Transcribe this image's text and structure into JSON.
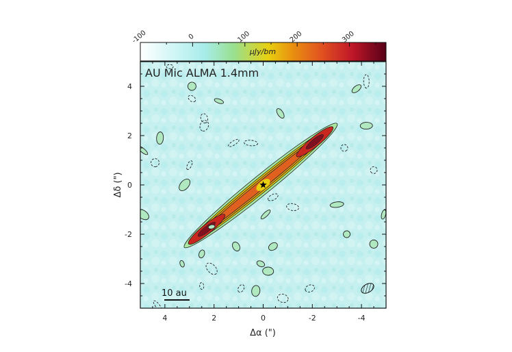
{
  "chart_data": {
    "type": "heatmap",
    "title": "AU Mic ALMA 1.4mm",
    "xlabel": "Δα (\")",
    "ylabel": "Δδ (\")",
    "xlim": [
      5,
      -5
    ],
    "ylim": [
      -5,
      5
    ],
    "x_ticks": [
      4,
      2,
      0,
      -2,
      -4
    ],
    "y_ticks": [
      4,
      2,
      0,
      -2,
      -4
    ],
    "colorbar": {
      "label": "μJy/bm",
      "range": [
        -100,
        370
      ],
      "ticks": [
        -100,
        0,
        100,
        200,
        300
      ],
      "colors": [
        "#ffffff",
        "#b8f0f0",
        "#98e090",
        "#f0c000",
        "#e07010",
        "#c81818",
        "#600018"
      ]
    },
    "disk": {
      "center": [
        0,
        0
      ],
      "position_angle_deg": 128,
      "peaks": [
        {
          "x": 2.3,
          "y": -1.8,
          "value": 320
        },
        {
          "x": -2.1,
          "y": 1.75,
          "value": 300
        }
      ]
    },
    "star": {
      "x": 0,
      "y": 0
    },
    "scale_bar": {
      "label": "10 au",
      "length_arcsec": 1.03
    },
    "beam": {
      "x": -4.2,
      "y": -4.2
    }
  }
}
